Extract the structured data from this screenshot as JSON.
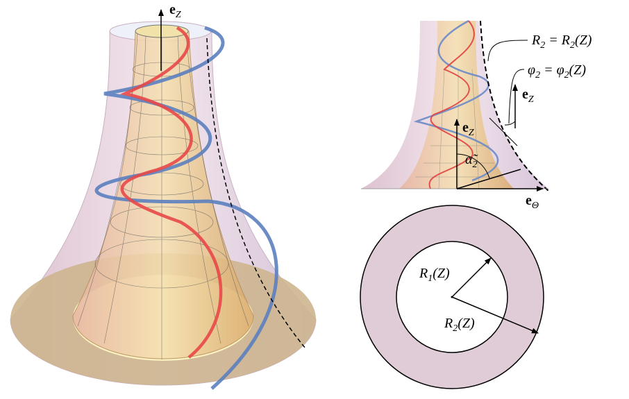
{
  "left_view": {
    "axis_label": [
      "e",
      "Z"
    ]
  },
  "side_view": {
    "radius_relation": [
      "R",
      "2",
      " = R",
      "2",
      "(Z)"
    ],
    "angle_relation": [
      "φ",
      "2",
      " = φ",
      "2",
      "(Z)"
    ],
    "outer_axis_label": [
      "e",
      "Z"
    ],
    "axis_z_label": [
      "e",
      "Z"
    ],
    "helix_angle_label": [
      "α̃",
      "2"
    ],
    "axis_theta_label": [
      "e",
      "Θ"
    ]
  },
  "cross_section": {
    "inner_radius_label": [
      "R",
      "1",
      "(Z)"
    ],
    "outer_radius_label": [
      "R",
      "2",
      "(Z)"
    ]
  }
}
